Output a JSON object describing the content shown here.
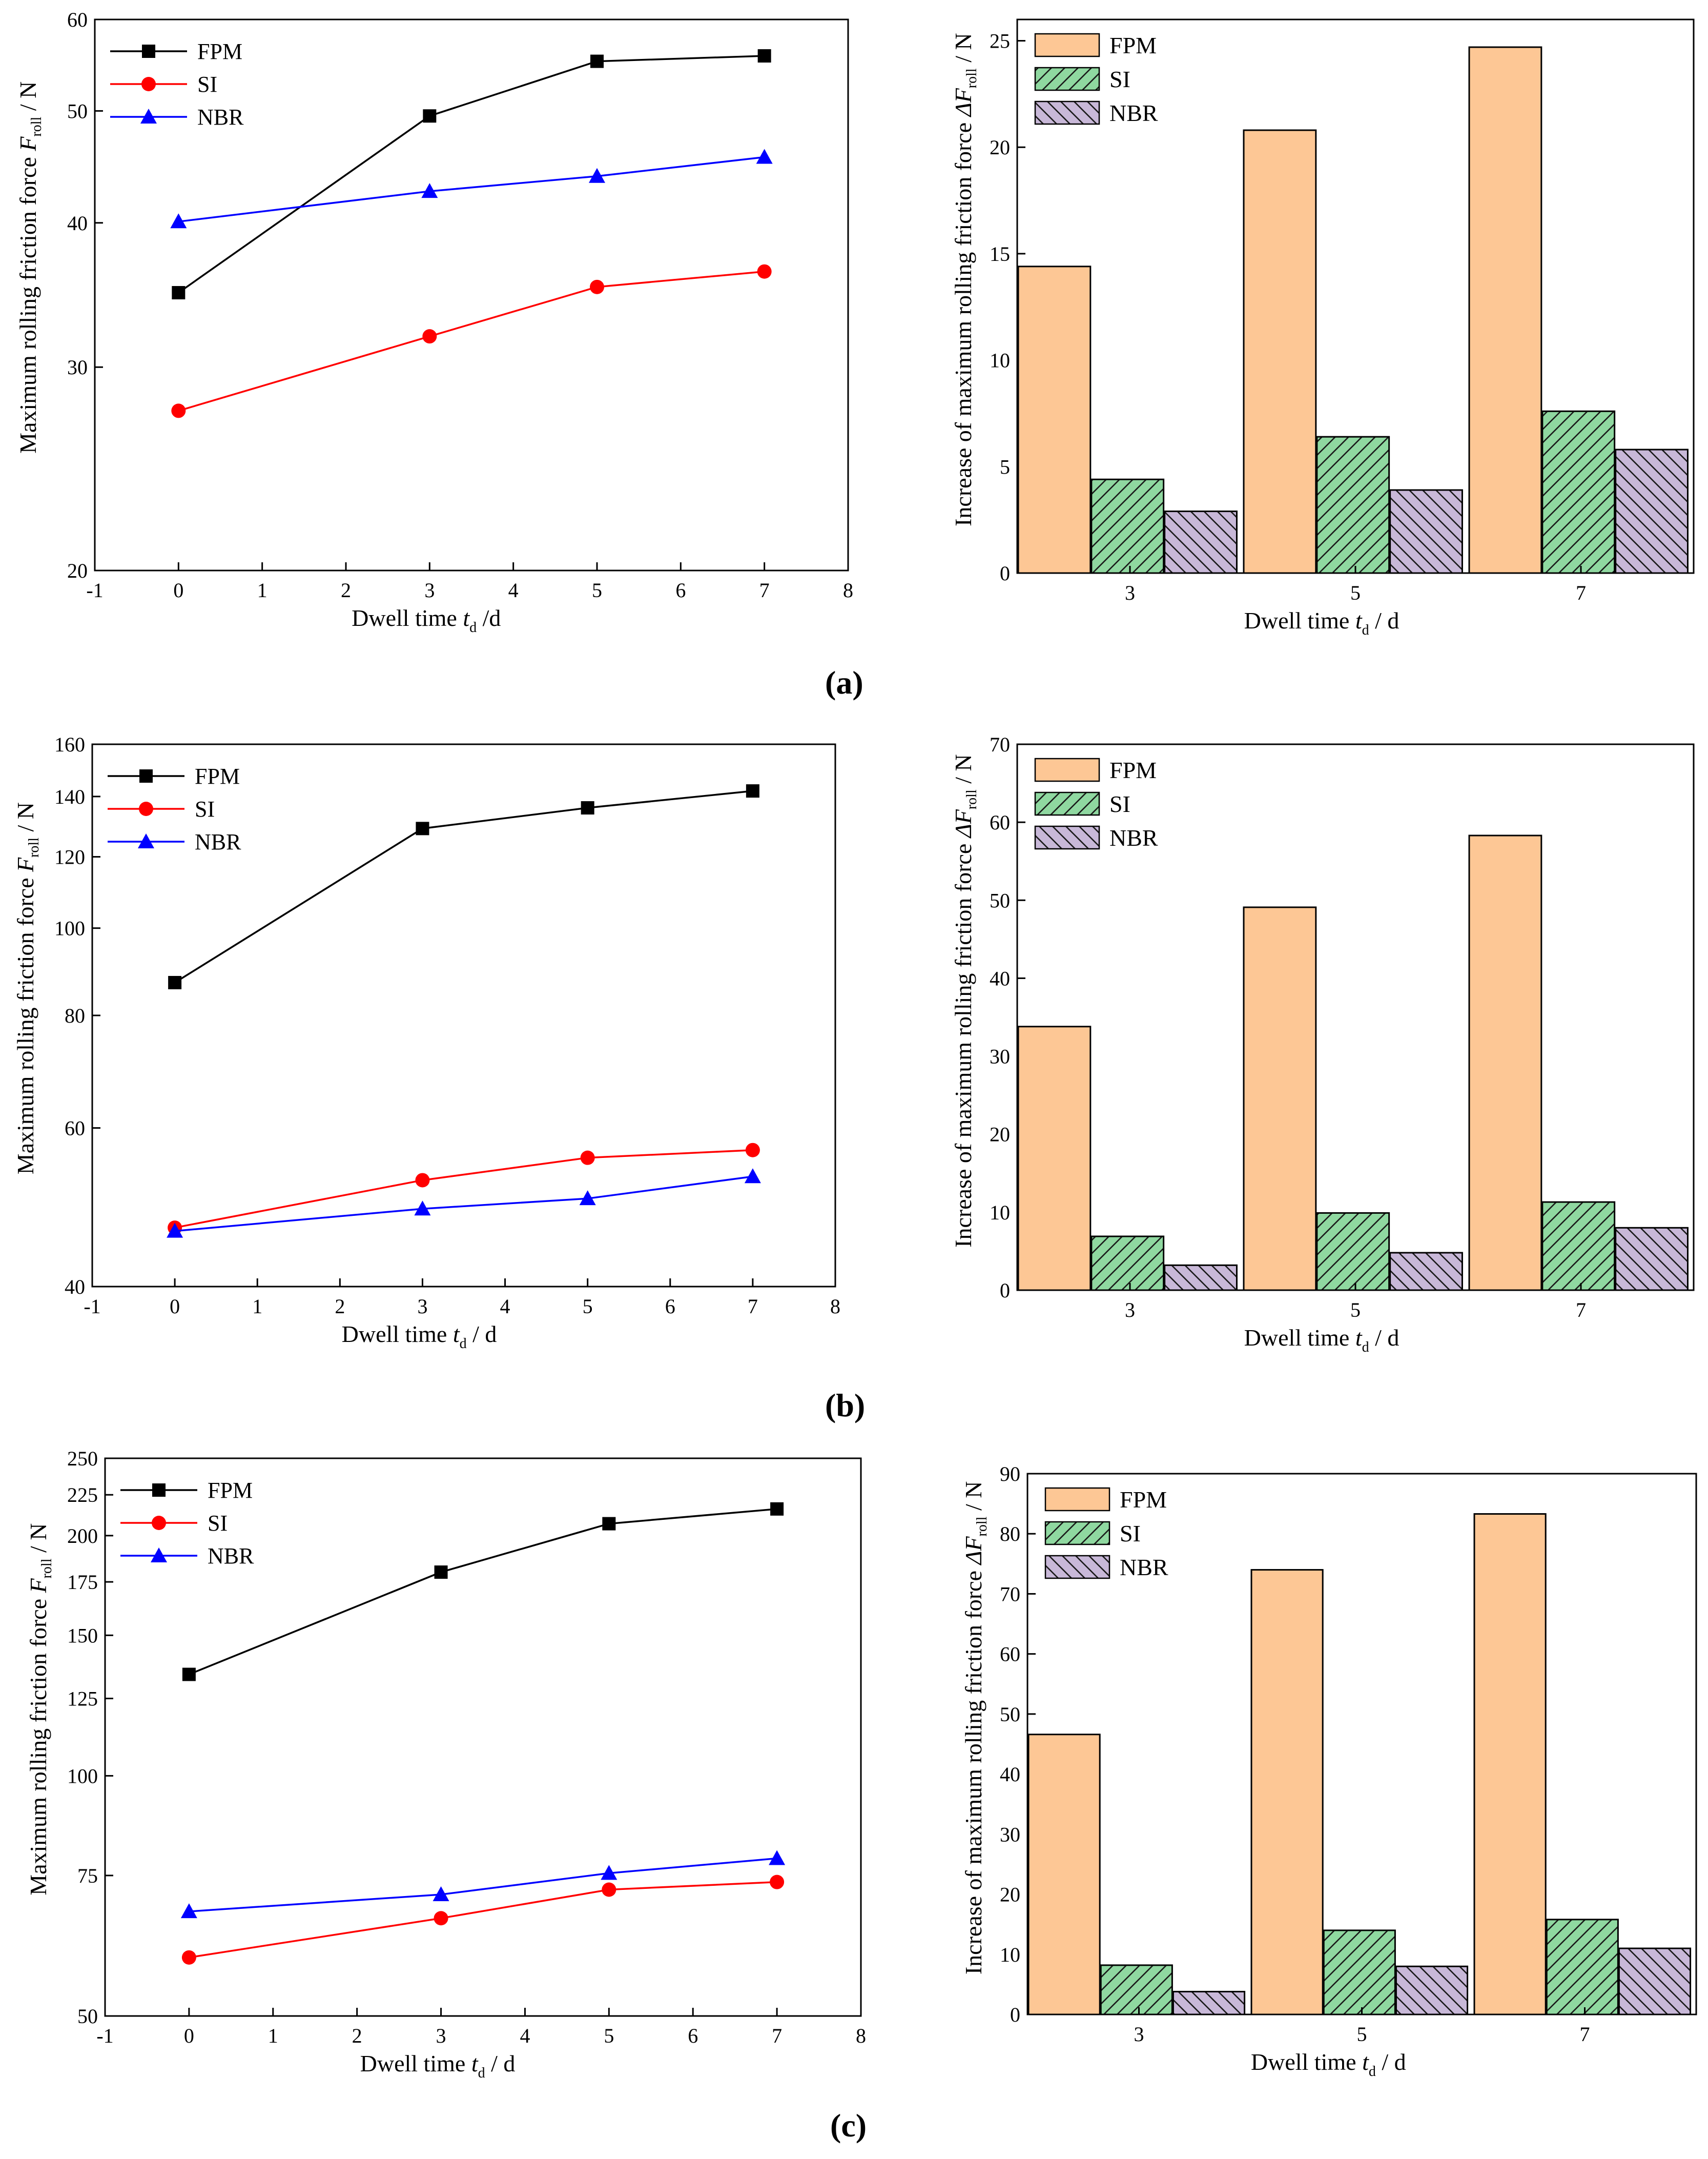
{
  "panels": [
    {
      "label": "(a)",
      "line": {
        "type": "line",
        "title": "",
        "xlabel": {
          "main": "Dwell time",
          "var": "t",
          "sub": "d",
          "unit": "/d"
        },
        "ylabel": {
          "main": "Maximum rolling friction force",
          "var": "F",
          "sub": "roll",
          "unit": "/ N"
        },
        "xlim": [
          -1,
          8
        ],
        "ylim": [
          20,
          60
        ],
        "yscale": "log",
        "xticks": [
          -1,
          0,
          1,
          2,
          3,
          4,
          5,
          6,
          7,
          8
        ],
        "yticks": [
          20,
          30,
          40,
          50,
          60
        ],
        "x": [
          0,
          3,
          5,
          7
        ],
        "series": [
          {
            "name": "FPM",
            "color": "#000000",
            "marker": "square",
            "values": [
              34.8,
              49.5,
              55.2,
              55.8
            ]
          },
          {
            "name": "SI",
            "color": "#ff0000",
            "marker": "circle",
            "values": [
              27.5,
              31.9,
              35.2,
              36.3
            ]
          },
          {
            "name": "NBR",
            "color": "#0000ff",
            "marker": "triangle",
            "values": [
              40.1,
              42.6,
              43.9,
              45.6
            ]
          }
        ]
      },
      "bar": {
        "type": "bar",
        "title": "",
        "xlabel": {
          "main": "Dwell time",
          "var": "t",
          "sub": "d",
          "unit": "/ d"
        },
        "ylabel": {
          "main": "Increase of maximum rolling friction force",
          "var": "ΔF",
          "sub": "roll",
          "unit": "/ N"
        },
        "ylim": [
          0,
          26
        ],
        "yticks": [
          0,
          5,
          10,
          15,
          20,
          25
        ],
        "categories": [
          "3",
          "5",
          "7"
        ],
        "series": [
          {
            "name": "FPM",
            "color": "#fdc795",
            "pattern": "none",
            "values": [
              14.4,
              20.8,
              24.7
            ]
          },
          {
            "name": "SI",
            "color": "#8fd8a0",
            "pattern": "hatch-fwd",
            "values": [
              4.4,
              6.4,
              7.6
            ]
          },
          {
            "name": "NBR",
            "color": "#c8b8d8",
            "pattern": "hatch-back",
            "values": [
              2.9,
              3.9,
              5.8
            ]
          }
        ]
      }
    },
    {
      "label": "(b)",
      "line": {
        "type": "line",
        "title": "",
        "xlabel": {
          "main": "Dwell time",
          "var": "t",
          "sub": "d",
          "unit": "/ d"
        },
        "ylabel": {
          "main": "Maximum rolling friction force",
          "var": "F",
          "sub": "roll",
          "unit": "/ N"
        },
        "xlim": [
          -1,
          8
        ],
        "ylim": [
          40,
          160
        ],
        "yscale": "log",
        "xticks": [
          -1,
          0,
          1,
          2,
          3,
          4,
          5,
          6,
          7,
          8
        ],
        "yticks": [
          40,
          60,
          80,
          100,
          120,
          140,
          160
        ],
        "x": [
          0,
          3,
          5,
          7
        ],
        "series": [
          {
            "name": "FPM",
            "color": "#000000",
            "marker": "square",
            "values": [
              87.0,
              129.0,
              136.0,
              142.0
            ]
          },
          {
            "name": "SI",
            "color": "#ff0000",
            "marker": "circle",
            "values": [
              46.5,
              52.5,
              55.6,
              56.7
            ]
          },
          {
            "name": "NBR",
            "color": "#0000ff",
            "marker": "triangle",
            "values": [
              46.1,
              48.8,
              50.1,
              53.0
            ]
          }
        ]
      },
      "bar": {
        "type": "bar",
        "title": "",
        "xlabel": {
          "main": "Dwell time",
          "var": "t",
          "sub": "d",
          "unit": "/ d"
        },
        "ylabel": {
          "main": "Increase of maximum rolling friction force",
          "var": "ΔF",
          "sub": "roll",
          "unit": "/ N"
        },
        "ylim": [
          0,
          70
        ],
        "yticks": [
          0,
          10,
          20,
          30,
          40,
          50,
          60,
          70
        ],
        "categories": [
          "3",
          "5",
          "7"
        ],
        "series": [
          {
            "name": "FPM",
            "color": "#fdc795",
            "pattern": "none",
            "values": [
              33.8,
              49.1,
              58.3
            ]
          },
          {
            "name": "SI",
            "color": "#8fd8a0",
            "pattern": "hatch-fwd",
            "values": [
              6.9,
              9.9,
              11.3
            ]
          },
          {
            "name": "NBR",
            "color": "#c8b8d8",
            "pattern": "hatch-back",
            "values": [
              3.2,
              4.8,
              8.0
            ]
          }
        ]
      }
    },
    {
      "label": "(c)",
      "line": {
        "type": "line",
        "title": "",
        "xlabel": {
          "main": "Dwell time",
          "var": "t",
          "sub": "d",
          "unit": "/ d"
        },
        "ylabel": {
          "main": "Maximum rolling friction force",
          "var": "F",
          "sub": "roll",
          "unit": "/ N"
        },
        "xlim": [
          -1,
          8
        ],
        "ylim": [
          50,
          250
        ],
        "yscale": "log",
        "xticks": [
          -1,
          0,
          1,
          2,
          3,
          4,
          5,
          6,
          7,
          8
        ],
        "yticks": [
          50,
          75,
          100,
          125,
          150,
          175,
          200,
          225,
          250
        ],
        "x": [
          0,
          3,
          5,
          7
        ],
        "series": [
          {
            "name": "FPM",
            "color": "#000000",
            "marker": "square",
            "values": [
              134,
              180,
              207,
              216
            ]
          },
          {
            "name": "SI",
            "color": "#ff0000",
            "marker": "circle",
            "values": [
              59.2,
              66.3,
              72.0,
              73.6
            ]
          },
          {
            "name": "NBR",
            "color": "#0000ff",
            "marker": "triangle",
            "values": [
              67.6,
              71.0,
              75.5,
              78.8
            ]
          }
        ]
      },
      "bar": {
        "type": "bar",
        "title": "",
        "xlabel": {
          "main": "Dwell time",
          "var": "t",
          "sub": "d",
          "unit": "/ d"
        },
        "ylabel": {
          "main": "Increase of maximum rolling friction force",
          "var": "ΔF",
          "sub": "roll",
          "unit": "/ N"
        },
        "ylim": [
          0,
          90
        ],
        "yticks": [
          0,
          10,
          20,
          30,
          40,
          50,
          60,
          70,
          80,
          90
        ],
        "categories": [
          "3",
          "5",
          "7"
        ],
        "series": [
          {
            "name": "FPM",
            "color": "#fdc795",
            "pattern": "none",
            "values": [
              46.6,
              74.0,
              83.3
            ]
          },
          {
            "name": "SI",
            "color": "#8fd8a0",
            "pattern": "hatch-fwd",
            "values": [
              8.2,
              14.0,
              15.8
            ]
          },
          {
            "name": "NBR",
            "color": "#c8b8d8",
            "pattern": "hatch-back",
            "values": [
              3.8,
              8.0,
              11.0
            ]
          }
        ]
      }
    }
  ]
}
